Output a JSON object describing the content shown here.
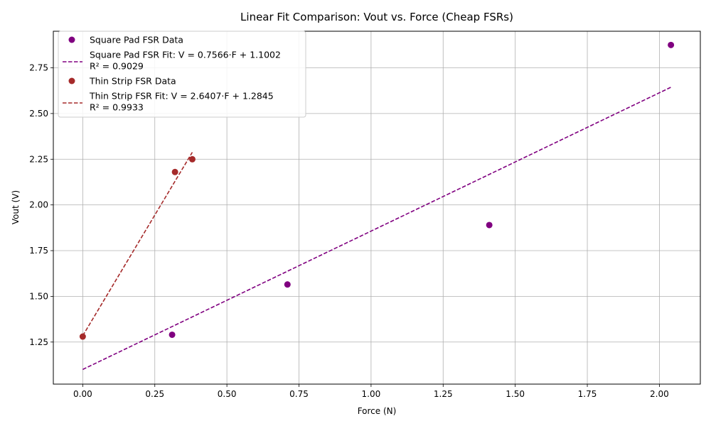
{
  "chart_data": {
    "type": "scatter",
    "title": "Linear Fit Comparison: Vout vs. Force (Cheap FSRs)",
    "xlabel": "Force (N)",
    "ylabel": "Vout (V)",
    "xlim": [
      -0.102,
      2.142
    ],
    "ylim": [
      1.02,
      2.95
    ],
    "xticks": [
      0.0,
      0.25,
      0.5,
      0.75,
      1.0,
      1.25,
      1.5,
      1.75,
      2.0
    ],
    "xtick_labels": [
      "0.00",
      "0.25",
      "0.50",
      "0.75",
      "1.00",
      "1.25",
      "1.50",
      "1.75",
      "2.00"
    ],
    "yticks": [
      1.25,
      1.5,
      1.75,
      2.0,
      2.25,
      2.5,
      2.75
    ],
    "ytick_labels": [
      "1.25",
      "1.50",
      "1.75",
      "2.00",
      "2.25",
      "2.50",
      "2.75"
    ],
    "grid": true,
    "legend_position": "top-left",
    "series": [
      {
        "kind": "points",
        "name": "Square Pad FSR Data",
        "color": "#800080",
        "x": [
          0.31,
          0.71,
          1.41,
          2.04
        ],
        "y": [
          1.29,
          1.565,
          1.89,
          2.875
        ]
      },
      {
        "kind": "fit",
        "name_lines": [
          "Square Pad FSR Fit: V = 0.7566·F + 1.1002",
          "R² = 0.9029"
        ],
        "color": "#800080",
        "slope": 0.7566,
        "intercept": 1.1002,
        "x_range": [
          0.0,
          2.04
        ]
      },
      {
        "kind": "points",
        "name": "Thin Strip FSR Data",
        "color": "#a52a2a",
        "x": [
          0.0,
          0.32,
          0.38
        ],
        "y": [
          1.28,
          2.18,
          2.25
        ]
      },
      {
        "kind": "fit",
        "name_lines": [
          "Thin Strip FSR Fit: V = 2.6407·F + 1.2845",
          "R² = 0.9933"
        ],
        "color": "#a52a2a",
        "slope": 2.6407,
        "intercept": 1.2845,
        "x_range": [
          0.0,
          0.38
        ]
      }
    ]
  }
}
